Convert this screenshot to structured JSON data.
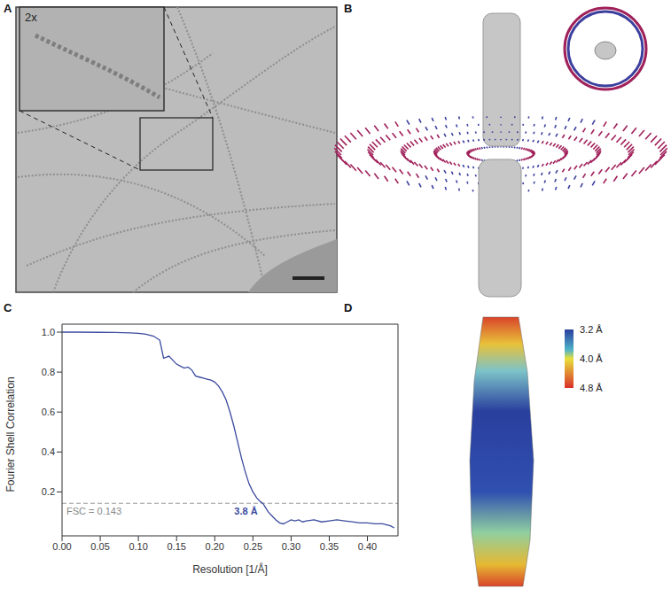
{
  "panel_labels": [
    "A",
    "B",
    "C",
    "D"
  ],
  "micrograph": {
    "inset_label": "2x"
  },
  "local_resolution": {
    "colorbar": {
      "range": [
        3.2,
        4.8
      ],
      "ticks": [
        {
          "value": 3.2,
          "label": "3.2 Å"
        },
        {
          "value": 4.0,
          "label": "4.0 Å"
        },
        {
          "value": 4.8,
          "label": "4.8 Å"
        }
      ]
    }
  },
  "chart_data": {
    "type": "line",
    "xlabel": "Resolution [1/Å]",
    "ylabel": "Fourier Shell Correlation",
    "color": "#3b4a9e",
    "grid": false,
    "x": [
      0,
      0.02,
      0.05,
      0.07,
      0.09,
      0.1,
      0.11,
      0.12,
      0.128,
      0.133,
      0.137,
      0.14,
      0.145,
      0.15,
      0.155,
      0.16,
      0.165,
      0.17,
      0.175,
      0.18,
      0.185,
      0.19,
      0.195,
      0.2,
      0.205,
      0.21,
      0.215,
      0.22,
      0.225,
      0.23,
      0.235,
      0.24,
      0.245,
      0.25,
      0.255,
      0.26,
      0.263,
      0.27,
      0.275,
      0.28,
      0.285,
      0.29,
      0.295,
      0.3,
      0.305,
      0.31,
      0.315,
      0.32,
      0.33,
      0.34,
      0.35,
      0.36,
      0.37,
      0.38,
      0.39,
      0.4,
      0.41,
      0.42,
      0.43,
      0.435
    ],
    "values": [
      1.0,
      1.0,
      0.999,
      0.998,
      0.996,
      0.994,
      0.99,
      0.98,
      0.96,
      0.87,
      0.875,
      0.88,
      0.86,
      0.84,
      0.83,
      0.82,
      0.825,
      0.81,
      0.78,
      0.775,
      0.77,
      0.765,
      0.76,
      0.75,
      0.73,
      0.7,
      0.66,
      0.6,
      0.53,
      0.45,
      0.37,
      0.3,
      0.24,
      0.2,
      0.17,
      0.15,
      0.143,
      0.1,
      0.08,
      0.06,
      0.045,
      0.04,
      0.05,
      0.06,
      0.055,
      0.06,
      0.05,
      0.055,
      0.06,
      0.05,
      0.055,
      0.06,
      0.055,
      0.05,
      0.045,
      0.045,
      0.04,
      0.04,
      0.03,
      0.02
    ],
    "xlim": [
      0,
      0.44
    ],
    "ylim": [
      -0.02,
      1.04
    ],
    "xticks": [
      {
        "value": 0,
        "label": "0.00"
      },
      {
        "value": 0.05,
        "label": "0.05"
      },
      {
        "value": 0.1,
        "label": "0.10"
      },
      {
        "value": 0.15,
        "label": "0.15"
      },
      {
        "value": 0.2,
        "label": "0.20"
      },
      {
        "value": 0.25,
        "label": "0.25"
      },
      {
        "value": 0.3,
        "label": "0.30"
      },
      {
        "value": 0.35,
        "label": "0.35"
      },
      {
        "value": 0.4,
        "label": "0.40"
      }
    ],
    "yticks": [
      0.2,
      0.4,
      0.6,
      0.8,
      {
        "value": 1.0,
        "label": "1.0"
      }
    ],
    "reference_line": {
      "value": 0.143,
      "label": "FSC = 0.143",
      "resolution_label": "3.8 Å"
    }
  }
}
